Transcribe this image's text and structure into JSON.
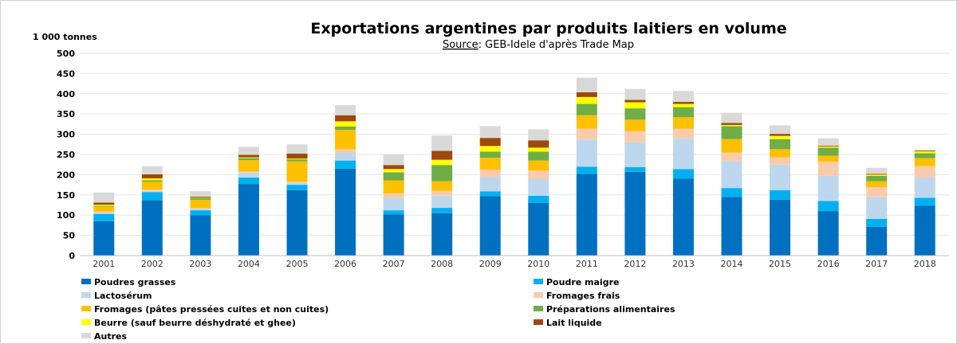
{
  "chart_data": {
    "type": "bar",
    "stacked": true,
    "title": "Exportations argentines par produits laitiers en volume",
    "source_label": "Source",
    "source_text": ": GEB-Idele d'après Trade Map",
    "unit_label": "1 000 tonnes",
    "ylim": [
      0,
      500
    ],
    "yticks": [
      0,
      50,
      100,
      150,
      200,
      250,
      300,
      350,
      400,
      450,
      500
    ],
    "grid": true,
    "legend_position": "bottom",
    "categories": [
      "2001",
      "2002",
      "2003",
      "2004",
      "2005",
      "2006",
      "2007",
      "2008",
      "2009",
      "2010",
      "2011",
      "2012",
      "2013",
      "2014",
      "2015",
      "2016",
      "2017",
      "2018"
    ],
    "series": [
      {
        "name": "Poudres grasses",
        "color": "#0070C0",
        "values": [
          85,
          137,
          100,
          177,
          162,
          215,
          102,
          105,
          147,
          130,
          202,
          207,
          190,
          145,
          138,
          110,
          71,
          123
        ]
      },
      {
        "name": "Poudre maigre",
        "color": "#00B0F0",
        "values": [
          18,
          20,
          12,
          16,
          13,
          20,
          10,
          13,
          12,
          18,
          18,
          12,
          24,
          22,
          24,
          25,
          20,
          20
        ]
      },
      {
        "name": "Lactosérum",
        "color": "#BDD7EE",
        "values": [
          3,
          3,
          3,
          12,
          5,
          20,
          30,
          30,
          35,
          42,
          67,
          61,
          75,
          66,
          63,
          62,
          53,
          50
        ]
      },
      {
        "name": "Fromages frais",
        "color": "#F8CBAD",
        "values": [
          3,
          3,
          3,
          3,
          3,
          8,
          12,
          12,
          18,
          20,
          27,
          28,
          25,
          22,
          18,
          35,
          25,
          28
        ]
      },
      {
        "name": "Fromages (pâtes pressées cuites et non cuites)",
        "color": "#FFC000",
        "values": [
          12,
          20,
          20,
          28,
          50,
          48,
          32,
          24,
          30,
          25,
          33,
          28,
          28,
          33,
          20,
          15,
          15,
          20
        ]
      },
      {
        "name": "Préparations alimentaires",
        "color": "#70AD47",
        "values": [
          2,
          3,
          5,
          5,
          5,
          8,
          20,
          40,
          15,
          22,
          28,
          28,
          25,
          32,
          25,
          20,
          13,
          12
        ]
      },
      {
        "name": "Beurre (sauf beurre déshydraté et ghee)",
        "color": "#FFFF00",
        "values": [
          3,
          5,
          1,
          2,
          2,
          13,
          8,
          13,
          14,
          10,
          17,
          15,
          8,
          3,
          8,
          3,
          3,
          5
        ]
      },
      {
        "name": "Lait liquide",
        "color": "#9E480E",
        "values": [
          5,
          10,
          2,
          6,
          12,
          15,
          10,
          22,
          20,
          18,
          12,
          6,
          5,
          5,
          5,
          2,
          2,
          2
        ]
      },
      {
        "name": "Autres",
        "color": "#D9D9D9",
        "values": [
          25,
          20,
          13,
          20,
          23,
          25,
          27,
          38,
          29,
          27,
          36,
          27,
          27,
          25,
          21,
          18,
          15,
          0
        ]
      }
    ]
  }
}
